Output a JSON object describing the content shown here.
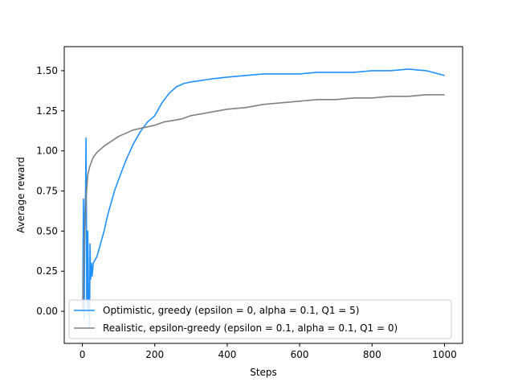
{
  "chart_data": {
    "type": "line",
    "xlabel": "Steps",
    "ylabel": "Average reward",
    "xlim": [
      -50,
      1050
    ],
    "ylim": [
      -0.2,
      1.65
    ],
    "xticks": [
      0,
      200,
      400,
      600,
      800,
      1000
    ],
    "xtick_labels": [
      "0",
      "200",
      "400",
      "600",
      "800",
      "1000"
    ],
    "yticks": [
      0.0,
      0.25,
      0.5,
      0.75,
      1.0,
      1.25,
      1.5
    ],
    "ytick_labels": [
      "0.00",
      "0.25",
      "0.50",
      "0.75",
      "1.00",
      "1.25",
      "1.50"
    ],
    "grid": false,
    "legend_position": "lower-right",
    "series": [
      {
        "name": "Optimistic, greedy (epsilon = 0, alpha = 0.1, Q1 = 5)",
        "color": "#1e90ff",
        "x": [
          1,
          3,
          5,
          7,
          9,
          10,
          11,
          12,
          13,
          14,
          15,
          17,
          19,
          20,
          21,
          23,
          25,
          27,
          30,
          35,
          40,
          50,
          60,
          70,
          80,
          90,
          100,
          110,
          120,
          130,
          140,
          150,
          160,
          170,
          180,
          190,
          200,
          210,
          220,
          230,
          240,
          250,
          260,
          280,
          300,
          330,
          360,
          400,
          450,
          500,
          550,
          600,
          650,
          700,
          750,
          800,
          850,
          900,
          950,
          1000
        ],
        "y": [
          0.0,
          0.7,
          -0.05,
          0.6,
          0.75,
          1.08,
          0.7,
          0.05,
          0.15,
          -0.02,
          0.5,
          0.1,
          0.0,
          -0.1,
          0.42,
          0.2,
          0.3,
          0.22,
          0.3,
          0.32,
          0.34,
          0.42,
          0.5,
          0.6,
          0.68,
          0.76,
          0.82,
          0.88,
          0.94,
          0.99,
          1.04,
          1.08,
          1.12,
          1.15,
          1.18,
          1.2,
          1.22,
          1.26,
          1.3,
          1.33,
          1.36,
          1.38,
          1.4,
          1.42,
          1.43,
          1.44,
          1.45,
          1.46,
          1.47,
          1.48,
          1.48,
          1.48,
          1.49,
          1.49,
          1.49,
          1.5,
          1.5,
          1.51,
          1.5,
          1.47
        ]
      },
      {
        "name": "Realistic, epsilon-greedy (epsilon = 0.1, alpha = 0.1, Q1 = 0)",
        "color": "#808080",
        "x": [
          1,
          5,
          10,
          15,
          20,
          25,
          30,
          40,
          50,
          60,
          80,
          100,
          120,
          140,
          160,
          180,
          200,
          225,
          250,
          275,
          300,
          350,
          400,
          450,
          500,
          550,
          600,
          650,
          700,
          750,
          800,
          850,
          900,
          950,
          1000
        ],
        "y": [
          0.0,
          0.4,
          0.7,
          0.85,
          0.9,
          0.93,
          0.96,
          0.99,
          1.01,
          1.03,
          1.06,
          1.09,
          1.11,
          1.13,
          1.14,
          1.15,
          1.16,
          1.18,
          1.19,
          1.2,
          1.22,
          1.24,
          1.26,
          1.27,
          1.29,
          1.3,
          1.31,
          1.32,
          1.32,
          1.33,
          1.33,
          1.34,
          1.34,
          1.35,
          1.35
        ]
      }
    ]
  }
}
